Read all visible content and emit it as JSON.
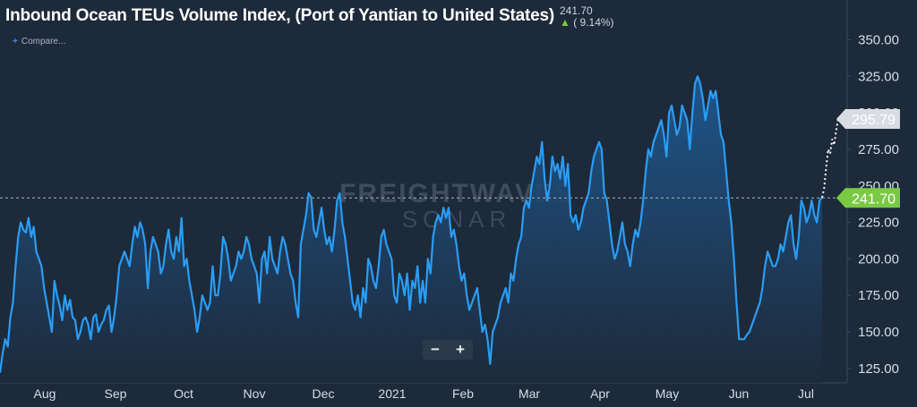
{
  "header": {
    "title": "Inbound Ocean TEUs Volume Index, (Port of Yantian to United States)",
    "last_value": "241.70",
    "change_arrow": "▲",
    "change_text": "( 9.14%)",
    "compare_label": "Compare..."
  },
  "watermark": {
    "line1": "FREIGHTWAVES",
    "line2": "SONAR"
  },
  "zoom": {
    "minus": "−",
    "plus": "+"
  },
  "colors": {
    "background": "#1d2a3a",
    "line": "#2a9df4",
    "area_top": "#1f5a93",
    "area_bottom": "#1d2a3a",
    "last_tag": "#7ac943",
    "forecast_tag": "#d8dde3"
  },
  "chart_data": {
    "type": "area",
    "title": "Inbound Ocean TEUs Volume Index, (Port of Yantian to United States)",
    "x_tick_labels": [
      "Aug",
      "Sep",
      "Oct",
      "Nov",
      "Dec",
      "2021",
      "Feb",
      "Mar",
      "Apr",
      "May",
      "Jun",
      "Jul"
    ],
    "ylim": [
      120,
      365
    ],
    "y_ticks": [
      125,
      150,
      175,
      200,
      225,
      250,
      275,
      300,
      325,
      350
    ],
    "y_tick_labels": [
      "125.00",
      "150.00",
      "175.00",
      "200.00",
      "225.00",
      "250.00",
      "275.00",
      "300.00",
      "325.00",
      "350.00"
    ],
    "grid": false,
    "series": [
      {
        "type": "area",
        "values": [
          122,
          135,
          145,
          140,
          160,
          170,
          195,
          215,
          225,
          220,
          218,
          228,
          215,
          222,
          205,
          200,
          195,
          180,
          170,
          160,
          150,
          185,
          175,
          168,
          158,
          175,
          165,
          172,
          160,
          158,
          145,
          150,
          158,
          160,
          155,
          145,
          160,
          162,
          150,
          155,
          158,
          165,
          168,
          150,
          160,
          175,
          195,
          200,
          205,
          200,
          195,
          210,
          222,
          215,
          225,
          220,
          210,
          180,
          205,
          215,
          210,
          205,
          190,
          195,
          210,
          220,
          205,
          200,
          215,
          205,
          228,
          195,
          200,
          185,
          175,
          165,
          150,
          160,
          175,
          170,
          165,
          170,
          195,
          175,
          175,
          190,
          215,
          210,
          200,
          185,
          190,
          195,
          205,
          200,
          205,
          215,
          210,
          200,
          195,
          190,
          170,
          200,
          205,
          190,
          215,
          200,
          195,
          190,
          205,
          215,
          210,
          200,
          190,
          185,
          170,
          160,
          210,
          220,
          230,
          245,
          242,
          220,
          215,
          225,
          235,
          220,
          210,
          215,
          205,
          220,
          240,
          245,
          225,
          215,
          200,
          185,
          170,
          165,
          175,
          160,
          180,
          170,
          200,
          195,
          185,
          180,
          195,
          215,
          220,
          210,
          205,
          200,
          175,
          170,
          190,
          185,
          175,
          190,
          165,
          185,
          180,
          195,
          170,
          185,
          170,
          200,
          190,
          215,
          225,
          230,
          225,
          235,
          228,
          235,
          215,
          220,
          210,
          195,
          185,
          190,
          175,
          165,
          170,
          175,
          180,
          165,
          150,
          155,
          145,
          128,
          150,
          155,
          160,
          170,
          175,
          180,
          170,
          190,
          185,
          200,
          210,
          215,
          235,
          240,
          235,
          250,
          260,
          270,
          265,
          280,
          255,
          240,
          250,
          270,
          260,
          265,
          255,
          270,
          250,
          265,
          230,
          225,
          230,
          220,
          225,
          235,
          240,
          245,
          260,
          270,
          275,
          280,
          275,
          245,
          240,
          225,
          210,
          200,
          205,
          215,
          225,
          210,
          205,
          195,
          210,
          220,
          215,
          225,
          240,
          260,
          275,
          270,
          280,
          285,
          290,
          295,
          285,
          270,
          300,
          305,
          295,
          285,
          290,
          305,
          300,
          295,
          275,
          300,
          320,
          325,
          320,
          310,
          295,
          305,
          315,
          310,
          315,
          300,
          285,
          280,
          260,
          240,
          225,
          200,
          170,
          145,
          145,
          145,
          148,
          150,
          155,
          160,
          165,
          170,
          180,
          195,
          205,
          200,
          195,
          195,
          200,
          210,
          205,
          215,
          225,
          230,
          210,
          200,
          215,
          240,
          235,
          225,
          230,
          240,
          230,
          225,
          240,
          242
        ],
        "forecast": [
          242,
          248,
          262,
          275,
          272,
          282,
          278,
          288,
          295.79
        ],
        "last_value_label": "241.70",
        "forecast_label": "295.79",
        "reference_line": 241.7
      }
    ]
  }
}
